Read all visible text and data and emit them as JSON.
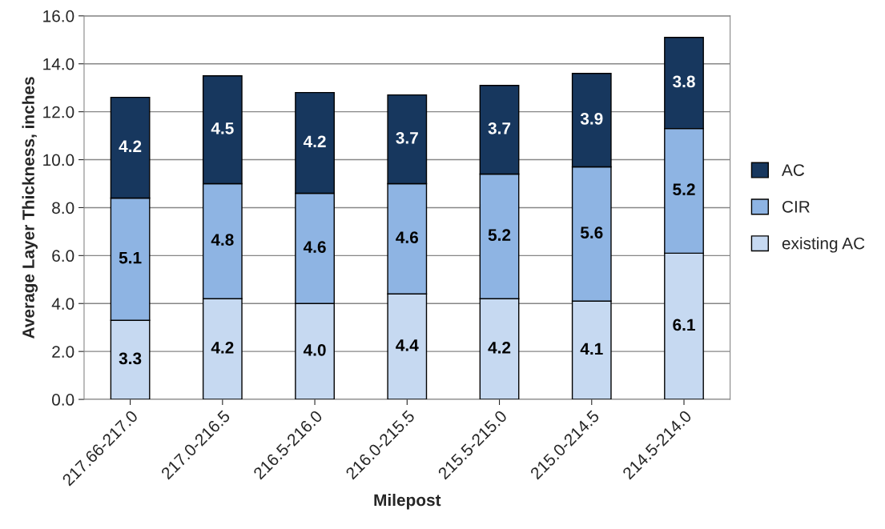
{
  "chart_data": {
    "type": "bar",
    "stacked": true,
    "xlabel": "Milepost",
    "ylabel": "Average Layer Thickness, inches",
    "categories": [
      "217.66-217.0",
      "217.0-216.5",
      "216.5-216.0",
      "216.0-215.5",
      "215.5-215.0",
      "215.0-214.5",
      "214.5-214.0"
    ],
    "series": [
      {
        "name": "existing AC",
        "color": "#c6d9f1",
        "values": [
          3.3,
          4.2,
          4.0,
          4.4,
          4.2,
          4.1,
          6.1
        ],
        "value_labels": [
          "3.3",
          "4.2",
          "4.0",
          "4.4",
          "4.2",
          "4.1",
          "6.1"
        ]
      },
      {
        "name": "CIR",
        "color": "#8eb4e3",
        "values": [
          5.1,
          4.8,
          4.6,
          4.6,
          5.2,
          5.6,
          5.2
        ],
        "value_labels": [
          "5.1",
          "4.8",
          "4.6",
          "4.6",
          "5.2",
          "5.6",
          "5.2"
        ]
      },
      {
        "name": "AC",
        "color": "#17375e",
        "values": [
          4.2,
          4.5,
          4.2,
          3.7,
          3.7,
          3.9,
          3.8
        ],
        "value_labels": [
          "4.2",
          "4.5",
          "4.2",
          "3.7",
          "3.7",
          "3.9",
          "3.8"
        ]
      }
    ],
    "ylim": [
      0,
      16
    ],
    "yticks": [
      {
        "value": 0,
        "label": "0.0"
      },
      {
        "value": 2,
        "label": "2.0"
      },
      {
        "value": 4,
        "label": "4.0"
      },
      {
        "value": 6,
        "label": "6.0"
      },
      {
        "value": 8,
        "label": "8.0"
      },
      {
        "value": 10,
        "label": "10.0"
      },
      {
        "value": 12,
        "label": "12.0"
      },
      {
        "value": 14,
        "label": "14.0"
      },
      {
        "value": 16,
        "label": "16.0"
      }
    ],
    "grid": "y",
    "legend": "right"
  }
}
